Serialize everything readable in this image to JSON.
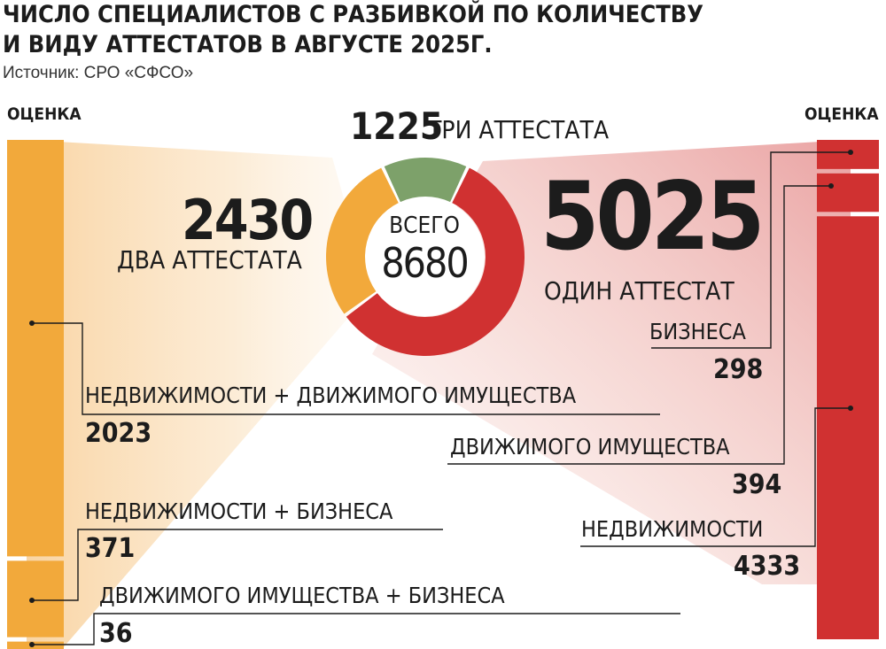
{
  "title_line1": "ЧИСЛО СПЕЦИАЛИСТОВ С РАЗБИВКОЙ ПО КОЛИЧЕСТВУ",
  "title_line2": "И ВИДУ АТТЕСТАТОВ В АВГУСТЕ 2025Г.",
  "source": "Источник: СРО «СФСО»",
  "colors": {
    "one_attestat": "#d03131",
    "two_attestats": "#f2a93b",
    "three_attestats": "#7da16a",
    "text": "#1c1c1c"
  },
  "chart_data": [
    {
      "type": "pie",
      "variant": "donut",
      "center_label": "ВСЕГО",
      "total": 8680,
      "slices": [
        {
          "label": "ОДИН АТТЕСТАТ",
          "value": 5025
        },
        {
          "label": "ДВА АТТЕСТАТА",
          "value": 2430
        },
        {
          "label": "ТРИ АТТЕСТАТА",
          "value": 1225
        }
      ]
    },
    {
      "type": "bar",
      "variant": "stacked-vertical",
      "header": "ОЦЕНКА",
      "parent": "ДВА АТТЕСТАТА",
      "categories": [
        "НЕДВИЖИМОСТИ + ДВИЖИМОГО ИМУЩЕСТВА",
        "НЕДВИЖИМОСТИ + БИЗНЕСА",
        "ДВИЖИМОГО ИМУЩЕСТВА + БИЗНЕСА"
      ],
      "values": [
        2023,
        371,
        36
      ]
    },
    {
      "type": "bar",
      "variant": "stacked-vertical",
      "header": "ОЦЕНКА",
      "parent": "ОДИН АТТЕСТАТ",
      "categories": [
        "БИЗНЕСА",
        "ДВИЖИМОГО ИМУЩЕСТВА",
        "НЕДВИЖИМОСТИ"
      ],
      "values": [
        298,
        394,
        4333
      ]
    }
  ]
}
